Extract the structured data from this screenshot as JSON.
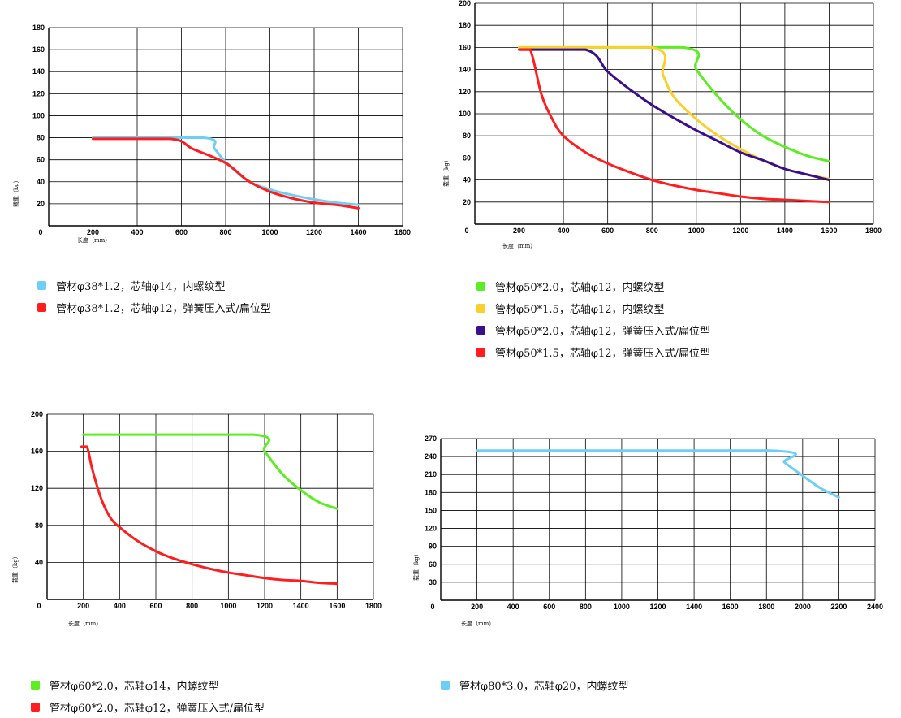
{
  "axis_text": {
    "xlabel": "长度（mm）",
    "ylabel": "载重（kg）"
  },
  "chart_data": [
    {
      "type": "line",
      "xlabel": "长度（mm）",
      "ylabel": "载重（kg）",
      "xlim": [
        0,
        1600
      ],
      "ylim": [
        0,
        180
      ],
      "xticks": [
        200,
        400,
        600,
        800,
        1000,
        1200,
        1400,
        1600
      ],
      "yticks": [
        20,
        40,
        60,
        80,
        100,
        120,
        140,
        160,
        180
      ],
      "grid": true,
      "legend_position": "bottom",
      "series": [
        {
          "name": "管材φ38*1.2，芯轴φ14，内螺纹型",
          "color": "#6dcff6",
          "points": [
            [
              200,
              80
            ],
            [
              700,
              80
            ],
            [
              750,
              70
            ],
            [
              800,
              58
            ],
            [
              900,
              41
            ],
            [
              1000,
              33
            ],
            [
              1100,
              28
            ],
            [
              1200,
              24
            ],
            [
              1300,
              21
            ],
            [
              1400,
              19
            ]
          ]
        },
        {
          "name": "管材φ38*1.2，芯轴φ12，弹簧压入式/扁位型",
          "color": "#ff1d1d",
          "points": [
            [
              200,
              79
            ],
            [
              550,
              79
            ],
            [
              650,
              70
            ],
            [
              800,
              57
            ],
            [
              900,
              41
            ],
            [
              1000,
              31
            ],
            [
              1100,
              25
            ],
            [
              1200,
              21
            ],
            [
              1300,
              19
            ],
            [
              1400,
              16
            ]
          ]
        }
      ]
    },
    {
      "type": "line",
      "xlabel": "长度（mm）",
      "ylabel": "载重（kg）",
      "xlim": [
        0,
        1800
      ],
      "ylim": [
        0,
        200
      ],
      "xticks": [
        200,
        400,
        600,
        800,
        1000,
        1200,
        1400,
        1600,
        1800
      ],
      "yticks": [
        20,
        40,
        60,
        80,
        100,
        120,
        140,
        160,
        180,
        200
      ],
      "grid": true,
      "legend_position": "bottom",
      "series": [
        {
          "name": "管材φ50*2.0，芯轴φ12，内螺纹型",
          "color": "#5cee22",
          "points": [
            [
              200,
              160
            ],
            [
              940,
              160
            ],
            [
              1000,
              140
            ],
            [
              1100,
              115
            ],
            [
              1200,
              95
            ],
            [
              1300,
              80
            ],
            [
              1400,
              70
            ],
            [
              1500,
              62
            ],
            [
              1600,
              57
            ]
          ]
        },
        {
          "name": "管材φ50*1.5，芯轴φ12，内螺纹型",
          "color": "#f9d02c",
          "points": [
            [
              200,
              160
            ],
            [
              800,
              160
            ],
            [
              850,
              135
            ],
            [
              900,
              115
            ],
            [
              1000,
              95
            ],
            [
              1100,
              80
            ],
            [
              1200,
              68
            ],
            [
              1300,
              58
            ],
            [
              1400,
              50
            ],
            [
              1500,
              45
            ],
            [
              1600,
              41
            ]
          ]
        },
        {
          "name": "管材φ50*2.0，芯轴φ12，弹簧压入式/扁位型",
          "color": "#3a0e8c",
          "points": [
            [
              200,
              158
            ],
            [
              500,
              158
            ],
            [
              600,
              138
            ],
            [
              700,
              122
            ],
            [
              800,
              108
            ],
            [
              900,
              96
            ],
            [
              1000,
              85
            ],
            [
              1100,
              75
            ],
            [
              1200,
              65
            ],
            [
              1300,
              58
            ],
            [
              1400,
              50
            ],
            [
              1500,
              45
            ],
            [
              1600,
              40
            ]
          ]
        },
        {
          "name": "管材φ50*1.5，芯轴φ12，弹簧压入式/扁位型",
          "color": "#ff1d1d",
          "points": [
            [
              200,
              158
            ],
            [
              250,
              158
            ],
            [
              300,
              118
            ],
            [
              350,
              95
            ],
            [
              400,
              80
            ],
            [
              500,
              65
            ],
            [
              600,
              55
            ],
            [
              700,
              47
            ],
            [
              800,
              40
            ],
            [
              900,
              35
            ],
            [
              1000,
              31
            ],
            [
              1100,
              28
            ],
            [
              1200,
              25
            ],
            [
              1300,
              23
            ],
            [
              1400,
              22
            ],
            [
              1500,
              21
            ],
            [
              1600,
              20
            ]
          ]
        }
      ]
    },
    {
      "type": "line",
      "xlabel": "长度（mm）",
      "ylabel": "载重（kg）",
      "xlim": [
        0,
        1800
      ],
      "ylim": [
        0,
        200
      ],
      "xticks": [
        200,
        400,
        600,
        800,
        1000,
        1200,
        1400,
        1600,
        1800
      ],
      "yticks": [
        40,
        80,
        120,
        160,
        200
      ],
      "grid": true,
      "legend_position": "bottom",
      "series": [
        {
          "name": "管材φ60*2.0，芯轴φ14，内螺纹型",
          "color": "#5cee22",
          "points": [
            [
              200,
              178
            ],
            [
              1140,
              178
            ],
            [
              1200,
              160
            ],
            [
              1300,
              135
            ],
            [
              1400,
              118
            ],
            [
              1500,
              105
            ],
            [
              1600,
              98
            ]
          ]
        },
        {
          "name": "管材φ60*2.0，芯轴φ12，弹簧压入式/扁位型",
          "color": "#ff1d1d",
          "points": [
            [
              190,
              165
            ],
            [
              220,
              165
            ],
            [
              250,
              140
            ],
            [
              300,
              108
            ],
            [
              350,
              88
            ],
            [
              400,
              78
            ],
            [
              500,
              63
            ],
            [
              600,
              52
            ],
            [
              700,
              44
            ],
            [
              800,
              38
            ],
            [
              900,
              33
            ],
            [
              1000,
              29
            ],
            [
              1100,
              26
            ],
            [
              1200,
              23
            ],
            [
              1300,
              21
            ],
            [
              1400,
              20
            ],
            [
              1500,
              18
            ],
            [
              1600,
              17
            ]
          ]
        }
      ]
    },
    {
      "type": "line",
      "xlabel": "长度（mm）",
      "ylabel": "载重（kg）",
      "xlim": [
        0,
        2400
      ],
      "ylim": [
        0,
        270
      ],
      "xticks": [
        200,
        400,
        600,
        800,
        1000,
        1200,
        1400,
        1600,
        1800,
        2000,
        2200,
        2400
      ],
      "yticks": [
        30,
        60,
        90,
        120,
        150,
        180,
        210,
        240,
        270
      ],
      "grid": true,
      "legend_position": "bottom",
      "series": [
        {
          "name": "管材φ80*3.0，芯轴φ20，内螺纹型",
          "color": "#6dcff6",
          "points": [
            [
              200,
              250
            ],
            [
              1820,
              250
            ],
            [
              1900,
              230
            ],
            [
              2000,
              208
            ],
            [
              2100,
              187
            ],
            [
              2200,
              172
            ]
          ]
        }
      ]
    }
  ]
}
